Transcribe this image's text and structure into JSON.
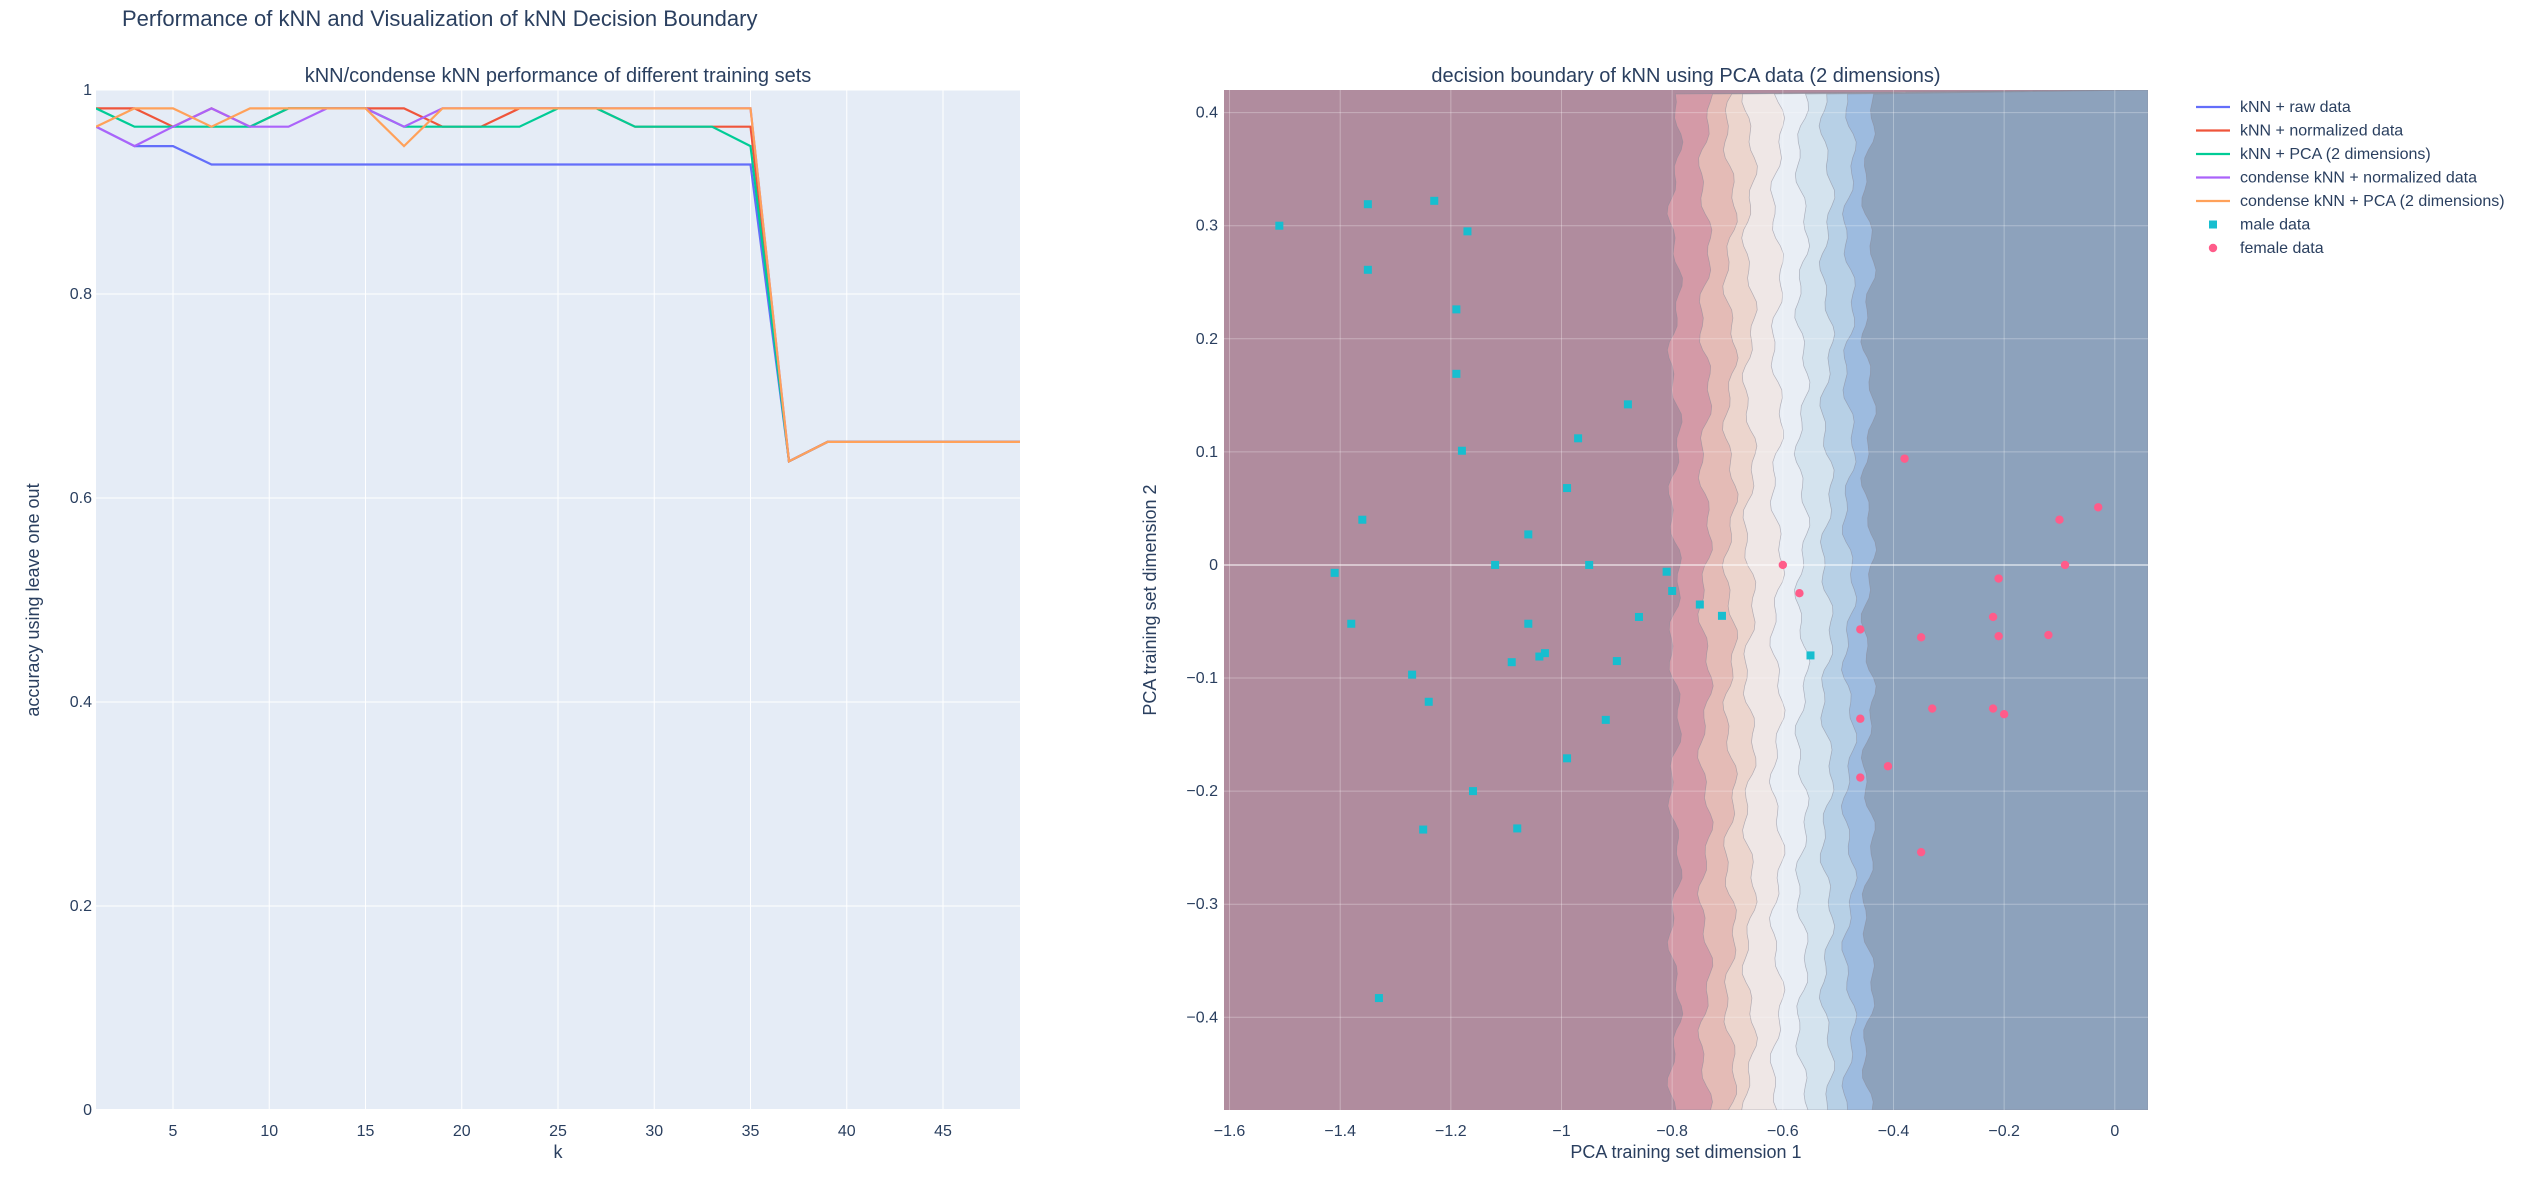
{
  "figure_title": "Performance of kNN and Visualization of kNN Decision Boundary",
  "colors": {
    "plot_bg": "#e5ecf6",
    "grid": "#ffffff",
    "text": "#2a3f5f",
    "male": "#17becf",
    "female": "#ff5c8a"
  },
  "chart_data": [
    {
      "type": "line",
      "title": "kNN/condense kNN performance of different training sets",
      "xlabel": "k",
      "ylabel": "accuracy using leave one out",
      "xlim": [
        1,
        49
      ],
      "ylim": [
        0,
        1
      ],
      "xticks": [
        5,
        10,
        15,
        20,
        25,
        30,
        35,
        40,
        45
      ],
      "yticks": [
        0,
        0.2,
        0.4,
        0.6,
        0.8,
        1
      ],
      "ytick_labels": [
        "0",
        "0.2",
        "0.4",
        "0.6",
        "0.8",
        "1"
      ],
      "x": [
        1,
        3,
        5,
        7,
        9,
        11,
        13,
        15,
        17,
        19,
        21,
        23,
        25,
        27,
        29,
        31,
        33,
        35,
        37,
        39,
        41,
        43,
        45,
        47,
        49
      ],
      "series": [
        {
          "name": "kNN + raw data",
          "color": "#636efa",
          "values": [
            0.964,
            0.945,
            0.945,
            0.927,
            0.927,
            0.927,
            0.927,
            0.927,
            0.927,
            0.927,
            0.927,
            0.927,
            0.927,
            0.927,
            0.927,
            0.927,
            0.927,
            0.927,
            0.636,
            0.655,
            0.655,
            0.655,
            0.655,
            0.655,
            0.655
          ]
        },
        {
          "name": "kNN + normalized data",
          "color": "#ef553b",
          "values": [
            0.982,
            0.982,
            0.964,
            0.982,
            0.964,
            0.982,
            0.982,
            0.982,
            0.982,
            0.964,
            0.964,
            0.982,
            0.982,
            0.982,
            0.964,
            0.964,
            0.964,
            0.964,
            0.636,
            0.655,
            0.655,
            0.655,
            0.655,
            0.655,
            0.655
          ]
        },
        {
          "name": "kNN + PCA (2 dimensions)",
          "color": "#00cc96",
          "values": [
            0.982,
            0.964,
            0.964,
            0.964,
            0.964,
            0.982,
            0.982,
            0.982,
            0.964,
            0.964,
            0.964,
            0.964,
            0.982,
            0.982,
            0.964,
            0.964,
            0.964,
            0.945,
            0.636,
            0.655,
            0.655,
            0.655,
            0.655,
            0.655,
            0.655
          ]
        },
        {
          "name": "condense kNN + normalized data",
          "color": "#ab63fa",
          "values": [
            0.964,
            0.945,
            0.964,
            0.982,
            0.964,
            0.964,
            0.982,
            0.982,
            0.964,
            0.982,
            0.982,
            0.982,
            0.982,
            0.982,
            0.982,
            0.982,
            0.982,
            0.982,
            0.636,
            0.655,
            0.655,
            0.655,
            0.655,
            0.655,
            0.655
          ]
        },
        {
          "name": "condense kNN + PCA (2 dimensions)",
          "color": "#ffa15a",
          "values": [
            0.964,
            0.982,
            0.982,
            0.964,
            0.982,
            0.982,
            0.982,
            0.982,
            0.945,
            0.982,
            0.982,
            0.982,
            0.982,
            0.982,
            0.982,
            0.982,
            0.982,
            0.982,
            0.636,
            0.655,
            0.655,
            0.655,
            0.655,
            0.655,
            0.655
          ]
        }
      ]
    },
    {
      "type": "scatter",
      "title": "decision boundary of kNN using PCA data (2 dimensions)",
      "xlabel": "PCA training set dimension 1",
      "ylabel": "PCA training set dimension 2",
      "xlim": [
        -1.61,
        0.06
      ],
      "ylim": [
        -0.482,
        0.42
      ],
      "xticks": [
        -1.6,
        -1.4,
        -1.2,
        -1,
        -0.8,
        -0.6,
        -0.4,
        -0.2,
        0
      ],
      "xtick_labels": [
        "−1.6",
        "−1.4",
        "−1.2",
        "−1",
        "−0.8",
        "−0.6",
        "−0.4",
        "−0.2",
        "0"
      ],
      "yticks": [
        -0.4,
        -0.3,
        -0.2,
        -0.1,
        0,
        0.1,
        0.2,
        0.3,
        0.4
      ],
      "ytick_labels": [
        "−0.4",
        "−0.3",
        "−0.2",
        "−0.1",
        "0",
        "0.1",
        "0.2",
        "0.3",
        "0.4"
      ],
      "contour_bands": [
        {
          "boundary": -1.61,
          "color": "#b08c9e"
        },
        {
          "boundary": -0.795,
          "color": "#d49aa7"
        },
        {
          "boundary": -0.74,
          "color": "#e4bbb6"
        },
        {
          "boundary": -0.695,
          "color": "#ecd5cd"
        },
        {
          "boundary": -0.66,
          "color": "#efe7e6"
        },
        {
          "boundary": -0.61,
          "color": "#e9eef5"
        },
        {
          "boundary": -0.565,
          "color": "#d4e3ee"
        },
        {
          "boundary": -0.52,
          "color": "#b7d0e6"
        },
        {
          "boundary": -0.48,
          "color": "#9dbbdf"
        },
        {
          "boundary": -0.445,
          "color": "#8da2bc"
        }
      ],
      "series": [
        {
          "name": "male data",
          "marker": "square",
          "color": "#17becf",
          "points": [
            [
              -1.51,
              0.3
            ],
            [
              -1.35,
              0.319
            ],
            [
              -1.35,
              0.261
            ],
            [
              -1.23,
              0.322
            ],
            [
              -1.17,
              0.295
            ],
            [
              -1.19,
              0.226
            ],
            [
              -1.19,
              0.169
            ],
            [
              -1.18,
              0.101
            ],
            [
              -0.88,
              0.142
            ],
            [
              -0.97,
              0.112
            ],
            [
              -0.99,
              0.068
            ],
            [
              -1.36,
              0.04
            ],
            [
              -1.41,
              -0.007
            ],
            [
              -1.06,
              0.027
            ],
            [
              -1.12,
              0.0
            ],
            [
              -0.95,
              0.0
            ],
            [
              -0.81,
              -0.006
            ],
            [
              -0.8,
              -0.023
            ],
            [
              -0.75,
              -0.035
            ],
            [
              -0.71,
              -0.045
            ],
            [
              -0.86,
              -0.046
            ],
            [
              -1.38,
              -0.052
            ],
            [
              -1.06,
              -0.052
            ],
            [
              -1.04,
              -0.081
            ],
            [
              -1.03,
              -0.078
            ],
            [
              -1.09,
              -0.086
            ],
            [
              -0.9,
              -0.085
            ],
            [
              -0.55,
              -0.08
            ],
            [
              -1.27,
              -0.097
            ],
            [
              -1.24,
              -0.121
            ],
            [
              -0.92,
              -0.137
            ],
            [
              -0.99,
              -0.171
            ],
            [
              -1.16,
              -0.2
            ],
            [
              -1.25,
              -0.234
            ],
            [
              -1.08,
              -0.233
            ],
            [
              -1.33,
              -0.383
            ]
          ]
        },
        {
          "name": "female data",
          "marker": "circle",
          "color": "#ff5c8a",
          "points": [
            [
              -0.6,
              0.0
            ],
            [
              -0.57,
              -0.025
            ],
            [
              -0.38,
              0.094
            ],
            [
              -0.1,
              0.04
            ],
            [
              -0.03,
              0.051
            ],
            [
              -0.09,
              0.0
            ],
            [
              -0.21,
              -0.012
            ],
            [
              -0.22,
              -0.046
            ],
            [
              -0.21,
              -0.063
            ],
            [
              -0.46,
              -0.057
            ],
            [
              -0.35,
              -0.064
            ],
            [
              -0.12,
              -0.062
            ],
            [
              -0.22,
              -0.127
            ],
            [
              -0.2,
              -0.132
            ],
            [
              -0.33,
              -0.127
            ],
            [
              -0.46,
              -0.136
            ],
            [
              -0.41,
              -0.178
            ],
            [
              -0.46,
              -0.188
            ],
            [
              -0.35,
              -0.254
            ]
          ]
        }
      ]
    }
  ]
}
